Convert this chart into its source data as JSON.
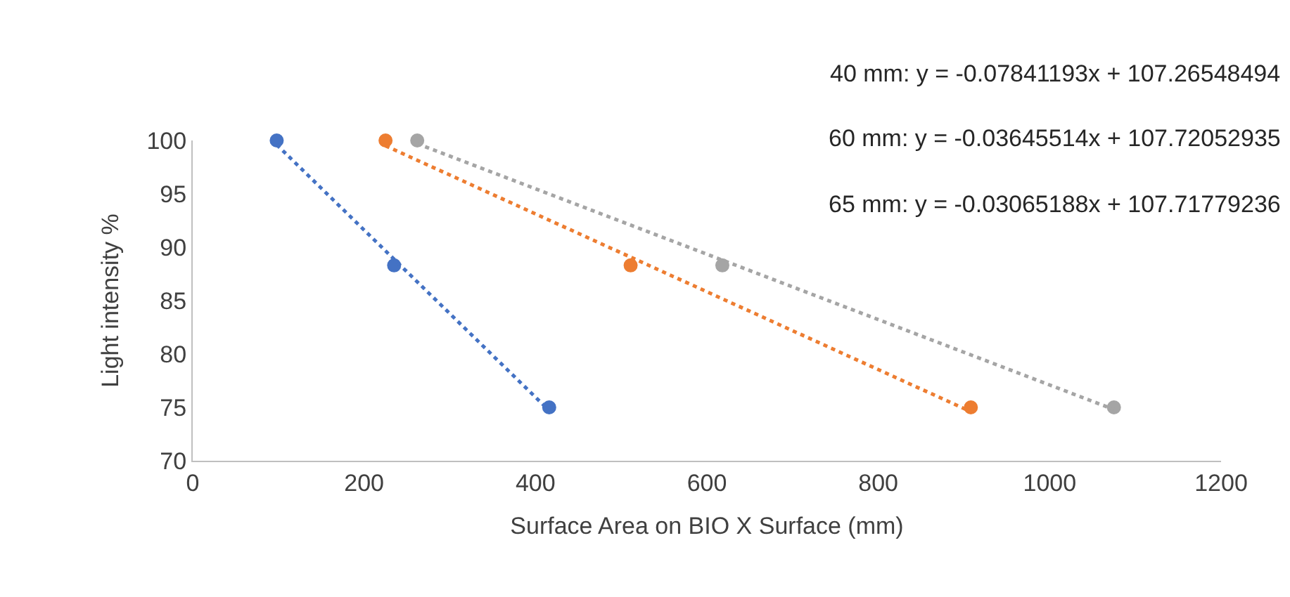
{
  "chart_data": {
    "type": "scatter",
    "xlabel": "Surface Area on BIO X Surface (mm)",
    "ylabel": "Light intensity %",
    "xlim": [
      0,
      1200
    ],
    "xticks": [
      0,
      200,
      400,
      600,
      800,
      1000,
      1200
    ],
    "ylim": [
      70,
      100
    ],
    "yticks": [
      70,
      75,
      80,
      85,
      90,
      95,
      100
    ],
    "grid": false,
    "marker": "circle",
    "series": [
      {
        "color": "#4472c4",
        "x": [
          98,
          235,
          416
        ],
        "values": [
          100,
          88.3,
          75
        ]
      },
      {
        "color": "#ed7d31",
        "x": [
          225,
          511,
          908
        ],
        "values": [
          100,
          88.3,
          75
        ]
      },
      {
        "color": "#a5a5a5",
        "x": [
          262,
          618,
          1075
        ],
        "values": [
          100,
          88.3,
          75
        ]
      },
      {
        "type": "line",
        "color": "#4472c4",
        "line_style": "dotted",
        "marker": "none",
        "x": [
          98,
          416
        ],
        "values": [
          99.6,
          74.7
        ]
      },
      {
        "type": "line",
        "color": "#ed7d31",
        "line_style": "dotted",
        "marker": "none",
        "x": [
          225,
          908
        ],
        "values": [
          99.5,
          74.6
        ]
      },
      {
        "type": "line",
        "color": "#a5a5a5",
        "line_style": "dotted",
        "marker": "none",
        "x": [
          262,
          1075
        ],
        "values": [
          99.7,
          74.8
        ]
      }
    ],
    "annotations": [
      "40 mm: y = -0.07841193x + 107.26548494",
      "60 mm: y = -0.03645514x + 107.72052935",
      "65 mm: y = -0.03065188x + 107.71779236"
    ]
  }
}
